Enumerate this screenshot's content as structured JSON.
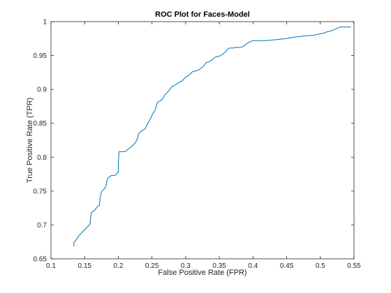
{
  "chart_data": {
    "type": "line",
    "title": "ROC Plot for Faces-Model",
    "xlabel": "False Positive Rate (FPR)",
    "ylabel": "True Positive Rate (TPR)",
    "xlim": [
      0.1,
      0.55
    ],
    "ylim": [
      0.65,
      1.0
    ],
    "x_ticks": [
      0.1,
      0.15,
      0.2,
      0.25,
      0.3,
      0.35,
      0.4,
      0.45,
      0.5,
      0.55
    ],
    "x_tick_labels": [
      "0.1",
      "0.15",
      "0.2",
      "0.25",
      "0.3",
      "0.35",
      "0.4",
      "0.45",
      "0.5",
      "0.55"
    ],
    "y_ticks": [
      0.65,
      0.7,
      0.75,
      0.8,
      0.85,
      0.9,
      0.95,
      1.0
    ],
    "y_tick_labels": [
      "0.65",
      "0.7",
      "0.75",
      "0.8",
      "0.85",
      "0.9",
      "0.95",
      "1"
    ],
    "grid": false,
    "line_color": "#0072bd",
    "series": [
      {
        "x": [
          0.134,
          0.134,
          0.136,
          0.14,
          0.145,
          0.15,
          0.155,
          0.158,
          0.159,
          0.16,
          0.165,
          0.17,
          0.172,
          0.173,
          0.175,
          0.18,
          0.182,
          0.183,
          0.185,
          0.19,
          0.195,
          0.2,
          0.2,
          0.201,
          0.202,
          0.21,
          0.215,
          0.22,
          0.225,
          0.228,
          0.23,
          0.232,
          0.235,
          0.24,
          0.243,
          0.245,
          0.248,
          0.25,
          0.255,
          0.258,
          0.26,
          0.262,
          0.265,
          0.268,
          0.27,
          0.275,
          0.278,
          0.28,
          0.283,
          0.285,
          0.29,
          0.295,
          0.3,
          0.305,
          0.31,
          0.313,
          0.315,
          0.32,
          0.325,
          0.328,
          0.33,
          0.335,
          0.34,
          0.342,
          0.345,
          0.35,
          0.355,
          0.36,
          0.362,
          0.365,
          0.37,
          0.375,
          0.38,
          0.385,
          0.39,
          0.395,
          0.4,
          0.405,
          0.41,
          0.42,
          0.43,
          0.44,
          0.45,
          0.46,
          0.47,
          0.475,
          0.48,
          0.49,
          0.5,
          0.505,
          0.51,
          0.515,
          0.52,
          0.525,
          0.53,
          0.54,
          0.545
        ],
        "y": [
          0.668,
          0.674,
          0.676,
          0.682,
          0.688,
          0.693,
          0.698,
          0.701,
          0.712,
          0.718,
          0.722,
          0.728,
          0.729,
          0.74,
          0.749,
          0.754,
          0.758,
          0.765,
          0.77,
          0.773,
          0.773,
          0.778,
          0.79,
          0.808,
          0.808,
          0.808,
          0.812,
          0.816,
          0.821,
          0.826,
          0.834,
          0.837,
          0.839,
          0.842,
          0.848,
          0.852,
          0.857,
          0.862,
          0.87,
          0.881,
          0.882,
          0.883,
          0.885,
          0.89,
          0.893,
          0.898,
          0.902,
          0.904,
          0.906,
          0.907,
          0.91,
          0.913,
          0.918,
          0.921,
          0.926,
          0.927,
          0.927,
          0.929,
          0.933,
          0.936,
          0.939,
          0.941,
          0.944,
          0.946,
          0.948,
          0.949,
          0.952,
          0.956,
          0.959,
          0.961,
          0.961,
          0.962,
          0.962,
          0.963,
          0.967,
          0.97,
          0.972,
          0.972,
          0.972,
          0.972,
          0.973,
          0.974,
          0.975,
          0.977,
          0.978,
          0.979,
          0.979,
          0.98,
          0.982,
          0.983,
          0.985,
          0.986,
          0.988,
          0.99,
          0.992,
          0.992,
          0.992
        ]
      }
    ]
  }
}
